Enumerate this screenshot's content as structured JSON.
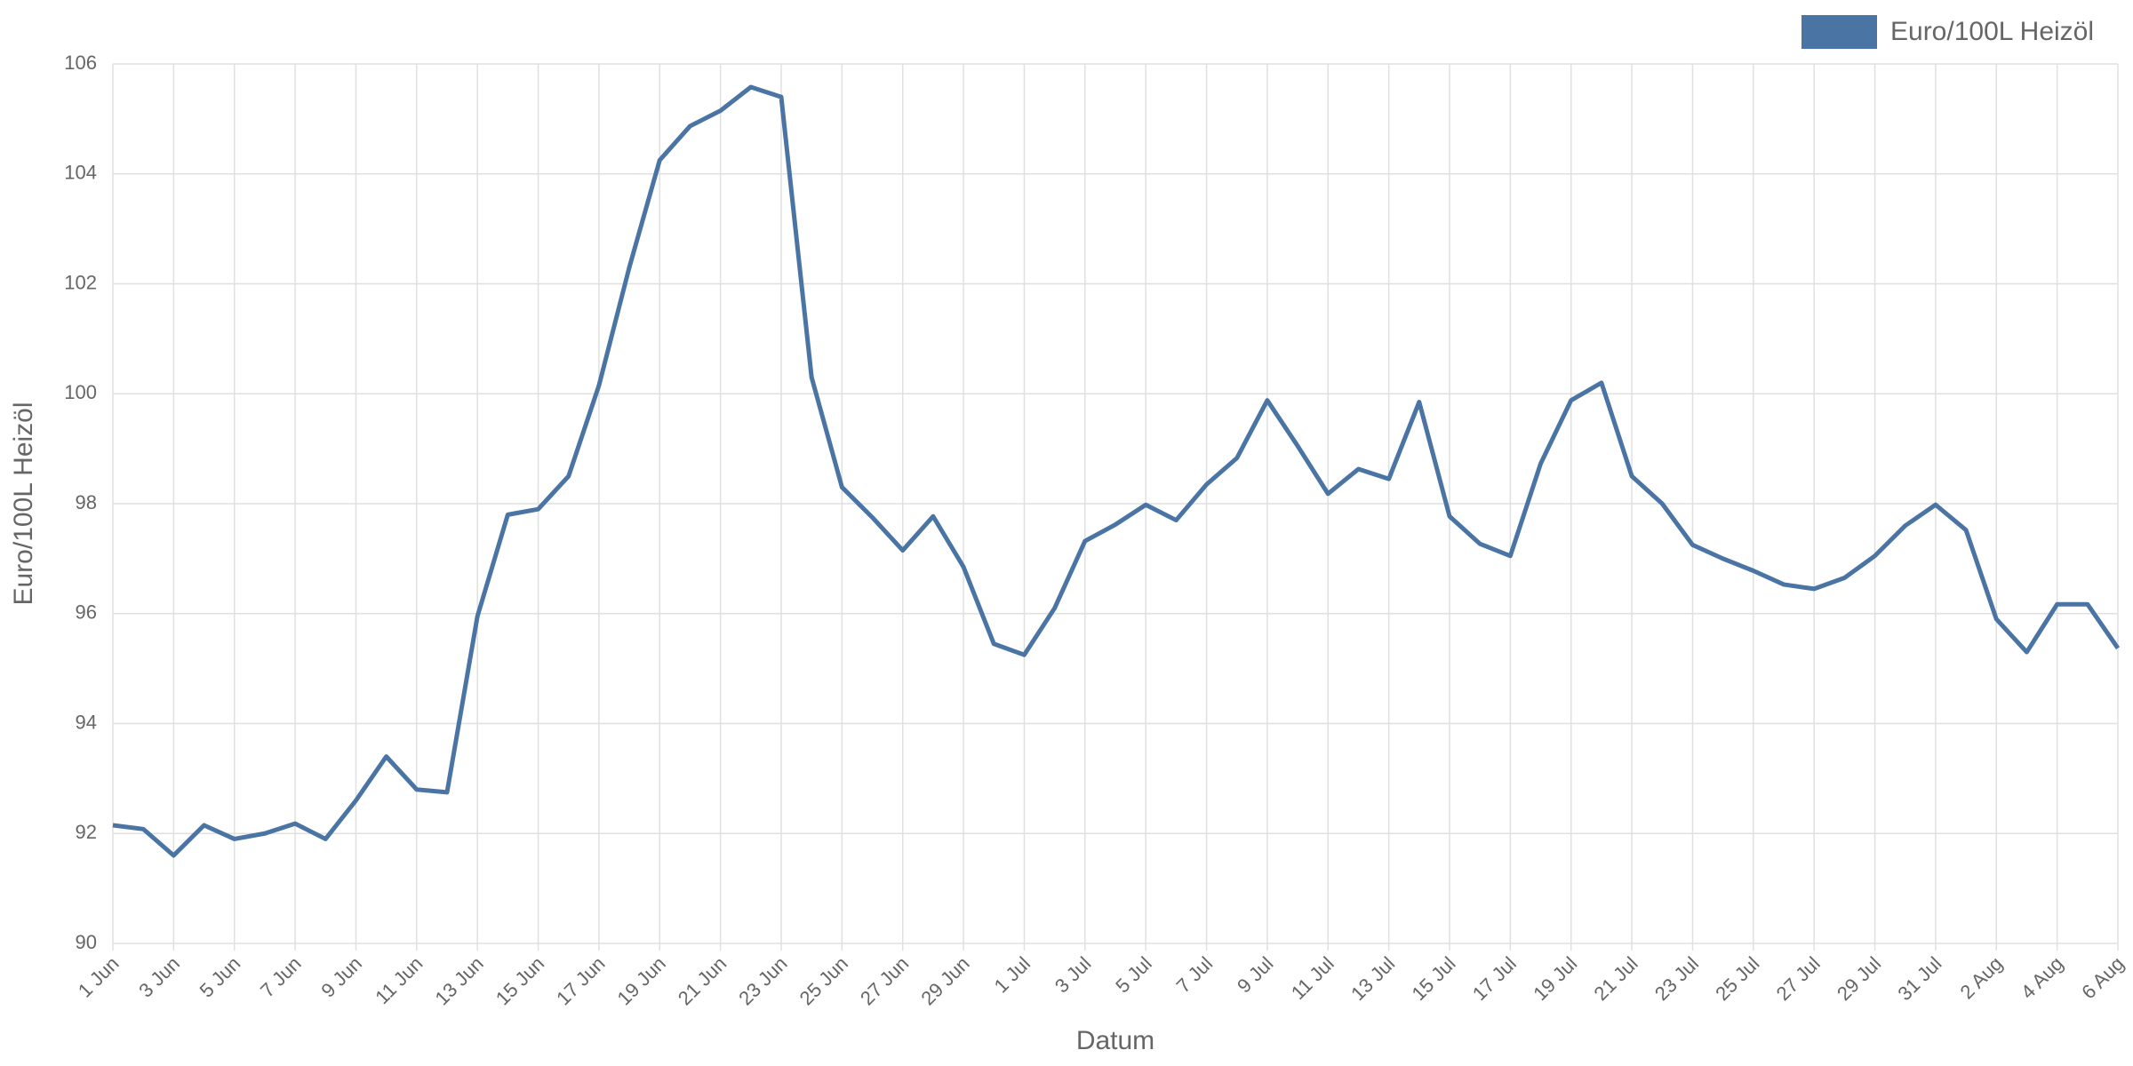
{
  "chart_data": {
    "type": "line",
    "x_label": "Datum",
    "y_label": "Euro/100L Heizöl",
    "categories": [
      "1 Jun",
      null,
      "3 Jun",
      null,
      "5 Jun",
      null,
      "7 Jun",
      null,
      "9 Jun",
      null,
      "11 Jun",
      null,
      "13 Jun",
      null,
      "15 Jun",
      null,
      "17 Jun",
      null,
      "19 Jun",
      null,
      "21 Jun",
      null,
      "23 Jun",
      null,
      "25 Jun",
      null,
      "27 Jun",
      null,
      "29 Jun",
      null,
      "1 Jul",
      null,
      "3 Jul",
      null,
      "5 Jul",
      null,
      "7 Jul",
      null,
      "9 Jul",
      null,
      "11 Jul",
      null,
      "13 Jul",
      null,
      "15 Jul",
      null,
      "17 Jul",
      null,
      "19 Jul",
      null,
      "21 Jul",
      null,
      "23 Jul",
      null,
      "25 Jul",
      null,
      "27 Jul",
      null,
      "29 Jul",
      null,
      "31 Jul",
      null,
      "2 Aug",
      null,
      "4 Aug",
      null,
      "6 Aug"
    ],
    "series": [
      {
        "name": "Euro/100L Heizöl",
        "color": "#4a74a4",
        "values": [
          92.15,
          92.08,
          91.6,
          92.15,
          91.9,
          92.0,
          92.18,
          91.9,
          92.6,
          93.4,
          92.8,
          92.75,
          95.95,
          97.8,
          97.9,
          98.5,
          100.15,
          102.3,
          104.25,
          104.87,
          105.15,
          105.58,
          105.4,
          100.3,
          98.3,
          97.75,
          97.15,
          97.77,
          96.85,
          95.45,
          95.25,
          96.1,
          97.32,
          97.62,
          97.98,
          97.7,
          98.35,
          98.83,
          99.88,
          99.05,
          98.18,
          98.63,
          98.45,
          99.85,
          97.77,
          97.27,
          97.05,
          98.73,
          99.88,
          100.2,
          98.5,
          98.0,
          97.25,
          97.0,
          96.78,
          96.53,
          96.45,
          96.65,
          97.05,
          97.6,
          97.98,
          97.52,
          95.9,
          95.3,
          96.17,
          96.17,
          95.37
        ]
      }
    ],
    "ylim": [
      90,
      106
    ],
    "yticks": [
      90,
      92,
      94,
      96,
      98,
      100,
      102,
      104,
      106
    ],
    "grid": true,
    "legend": "top-right"
  }
}
